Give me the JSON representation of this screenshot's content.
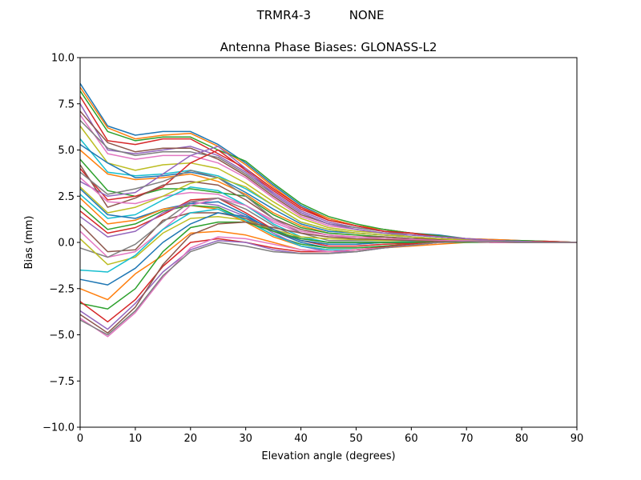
{
  "suptitle": "TRMR4-3          NONE",
  "chart_data": {
    "type": "line",
    "title": "Antenna Phase Biases: GLONASS-L2",
    "xlabel": "Elevation angle (degrees)",
    "ylabel": "Bias (mm)",
    "xlim": [
      0,
      90
    ],
    "ylim": [
      -10,
      10
    ],
    "xticks": [
      "0",
      "10",
      "20",
      "30",
      "40",
      "50",
      "60",
      "70",
      "80",
      "90"
    ],
    "yticks": [
      "10.0",
      "7.5",
      "5.0",
      "2.5",
      "0.0",
      "−2.5",
      "−5.0",
      "−7.5",
      "−10.0"
    ],
    "grid": false,
    "colors": [
      "#1f77b4",
      "#ff7f0e",
      "#2ca02c",
      "#d62728",
      "#9467bd",
      "#8c564b",
      "#e377c2",
      "#7f7f7f",
      "#bcbd22",
      "#17becf"
    ],
    "x": [
      0,
      5,
      10,
      15,
      20,
      25,
      30,
      35,
      40,
      45,
      50,
      55,
      60,
      65,
      70,
      75,
      80,
      85,
      90
    ],
    "series": [
      {
        "values": [
          8.6,
          6.3,
          5.8,
          6.0,
          6.0,
          5.3,
          4.3,
          3.1,
          2.0,
          1.3,
          0.9,
          0.7,
          0.5,
          0.4,
          0.2,
          0.15,
          0.1,
          0.05,
          0
        ]
      },
      {
        "values": [
          8.4,
          6.2,
          5.6,
          5.8,
          5.9,
          5.2,
          4.2,
          3.0,
          1.9,
          1.3,
          0.9,
          0.7,
          0.5,
          0.35,
          0.2,
          0.15,
          0.1,
          0.05,
          0
        ]
      },
      {
        "values": [
          8.2,
          6.0,
          5.5,
          5.7,
          5.7,
          5.0,
          4.4,
          3.2,
          2.1,
          1.4,
          1.0,
          0.7,
          0.5,
          0.35,
          0.2,
          0.1,
          0.1,
          0.05,
          0
        ]
      },
      {
        "values": [
          7.9,
          5.5,
          5.3,
          5.6,
          5.6,
          4.8,
          4.0,
          2.9,
          1.9,
          1.2,
          0.9,
          0.6,
          0.5,
          0.3,
          0.2,
          0.1,
          0.05,
          0.05,
          0
        ]
      },
      {
        "values": [
          7.5,
          5.0,
          4.8,
          5.0,
          5.2,
          4.7,
          3.8,
          2.7,
          1.7,
          1.1,
          0.8,
          0.6,
          0.4,
          0.3,
          0.2,
          0.1,
          0.05,
          0,
          0
        ]
      },
      {
        "values": [
          7.1,
          5.4,
          4.9,
          5.1,
          5.1,
          4.5,
          3.6,
          2.5,
          1.5,
          1.0,
          0.7,
          0.5,
          0.4,
          0.3,
          0.2,
          0.1,
          0.05,
          0,
          0
        ]
      },
      {
        "values": [
          6.9,
          4.8,
          4.5,
          4.7,
          4.7,
          4.3,
          3.5,
          2.4,
          1.4,
          0.9,
          0.7,
          0.5,
          0.4,
          0.3,
          0.2,
          0.1,
          0.05,
          0,
          0
        ]
      },
      {
        "values": [
          6.6,
          5.1,
          4.7,
          4.9,
          4.9,
          4.6,
          3.7,
          2.6,
          1.6,
          1.0,
          0.8,
          0.6,
          0.4,
          0.3,
          0.2,
          0.1,
          0.05,
          0,
          0
        ]
      },
      {
        "values": [
          6.3,
          4.3,
          3.9,
          4.2,
          4.3,
          4.0,
          3.2,
          2.2,
          1.3,
          0.8,
          0.6,
          0.5,
          0.3,
          0.2,
          0.15,
          0.1,
          0.05,
          0,
          0
        ]
      },
      {
        "values": [
          5.6,
          3.8,
          3.6,
          3.7,
          3.9,
          3.6,
          2.9,
          2.0,
          1.1,
          0.7,
          0.5,
          0.4,
          0.3,
          0.2,
          0.1,
          0.1,
          0.05,
          0,
          0
        ]
      },
      {
        "values": [
          5.3,
          4.3,
          3.5,
          3.6,
          3.8,
          3.5,
          2.7,
          1.8,
          1.0,
          0.6,
          0.5,
          0.4,
          0.3,
          0.2,
          0.1,
          0.05,
          0,
          0,
          0
        ]
      },
      {
        "values": [
          5.0,
          3.7,
          3.4,
          3.5,
          3.7,
          3.3,
          2.6,
          1.6,
          0.9,
          0.5,
          0.4,
          0.3,
          0.2,
          0.2,
          0.1,
          0.05,
          0,
          0,
          0
        ]
      },
      {
        "values": [
          4.5,
          2.8,
          2.5,
          2.9,
          2.9,
          2.7,
          2.5,
          1.5,
          0.8,
          0.5,
          0.4,
          0.3,
          0.2,
          0.15,
          0.1,
          0.05,
          0,
          0,
          0
        ]
      },
      {
        "values": [
          4.0,
          2.3,
          2.5,
          3.0,
          4.3,
          5.0,
          3.9,
          2.8,
          1.8,
          1.2,
          0.9,
          0.6,
          0.5,
          0.3,
          0.2,
          0.1,
          0.05,
          0,
          0
        ]
      },
      {
        "values": [
          3.3,
          2.5,
          2.7,
          3.7,
          4.7,
          5.2,
          4.0,
          2.6,
          1.6,
          1.0,
          0.7,
          0.5,
          0.4,
          0.3,
          0.2,
          0.1,
          0.05,
          0,
          0
        ]
      },
      {
        "values": [
          4.2,
          1.9,
          2.4,
          3.1,
          3.3,
          3.1,
          2.3,
          1.3,
          0.7,
          0.4,
          0.3,
          0.3,
          0.2,
          0.15,
          0.1,
          0.05,
          0,
          0,
          0
        ]
      },
      {
        "values": [
          3.5,
          2.2,
          2.1,
          2.5,
          2.7,
          2.6,
          2.0,
          1.1,
          0.5,
          0.3,
          0.3,
          0.2,
          0.15,
          0.1,
          0.1,
          0.05,
          0,
          0,
          0
        ]
      },
      {
        "values": [
          3.8,
          2.6,
          2.9,
          3.3,
          3.9,
          3.5,
          2.5,
          1.3,
          0.5,
          0.1,
          0.1,
          0.1,
          0.1,
          0.1,
          0.1,
          0.05,
          0,
          0,
          0
        ]
      },
      {
        "values": [
          3.0,
          1.6,
          1.9,
          2.5,
          3.2,
          3.5,
          3.0,
          2.0,
          1.1,
          0.7,
          0.5,
          0.4,
          0.3,
          0.2,
          0.1,
          0.05,
          0,
          0,
          0
        ]
      },
      {
        "values": [
          2.6,
          1.3,
          1.5,
          2.3,
          3.0,
          2.8,
          2.0,
          1.0,
          0.3,
          0.0,
          0.0,
          0.0,
          0.05,
          0.05,
          0.05,
          0.05,
          0,
          0,
          0
        ]
      },
      {
        "values": [
          2.9,
          1.5,
          1.3,
          1.8,
          2.1,
          2.2,
          1.5,
          0.6,
          0.0,
          -0.3,
          -0.3,
          -0.2,
          -0.1,
          0,
          0.05,
          0.05,
          0,
          0,
          0
        ]
      },
      {
        "values": [
          2.4,
          1.0,
          1.2,
          1.8,
          2.0,
          1.8,
          1.1,
          0.3,
          -0.2,
          -0.4,
          -0.4,
          -0.3,
          -0.2,
          -0.1,
          0,
          0.05,
          0,
          0,
          0
        ]
      },
      {
        "values": [
          2.0,
          0.7,
          1.0,
          1.7,
          2.0,
          1.9,
          1.2,
          0.4,
          -0.1,
          -0.3,
          -0.3,
          -0.2,
          -0.1,
          0,
          0,
          0,
          0,
          0,
          0
        ]
      },
      {
        "values": [
          1.7,
          0.5,
          0.8,
          1.5,
          2.3,
          2.4,
          1.6,
          0.7,
          0.1,
          -0.2,
          -0.2,
          -0.1,
          -0.05,
          0,
          0.05,
          0,
          0,
          0,
          0
        ]
      },
      {
        "values": [
          1.4,
          0.3,
          0.6,
          1.6,
          2.2,
          2.0,
          1.4,
          0.5,
          -0.2,
          -0.5,
          -0.5,
          -0.3,
          -0.15,
          0,
          0.05,
          0,
          0,
          0,
          0
        ]
      },
      {
        "values": [
          1.0,
          -0.5,
          -0.4,
          1.2,
          1.6,
          1.6,
          1.3,
          0.6,
          0.1,
          -0.1,
          -0.1,
          0,
          0,
          0.05,
          0.05,
          0,
          0,
          0,
          0
        ]
      },
      {
        "values": [
          0.6,
          -0.8,
          -0.5,
          0.7,
          2.0,
          2.4,
          2.0,
          1.2,
          0.6,
          0.4,
          0.3,
          0.2,
          0.15,
          0.1,
          0.1,
          0.05,
          0,
          0,
          0
        ]
      },
      {
        "values": [
          -0.3,
          -0.8,
          -0.1,
          1.1,
          2.2,
          2.4,
          1.8,
          0.9,
          0.2,
          0,
          0,
          0,
          0,
          0.05,
          0.05,
          0,
          0,
          0,
          0
        ]
      },
      {
        "values": [
          0.2,
          -1.2,
          -0.8,
          0.5,
          1.3,
          1.4,
          1.2,
          0.7,
          0.3,
          0.2,
          0.15,
          0.1,
          0.1,
          0.05,
          0.05,
          0,
          0,
          0,
          0
        ]
      },
      {
        "values": [
          -1.5,
          -1.6,
          -0.7,
          0.7,
          1.6,
          1.8,
          1.2,
          0.4,
          -0.2,
          -0.4,
          -0.4,
          -0.3,
          -0.15,
          0,
          0.05,
          0,
          0,
          0,
          0
        ]
      },
      {
        "values": [
          -2.0,
          -2.3,
          -1.4,
          0.0,
          1.0,
          1.6,
          1.4,
          0.7,
          0.1,
          -0.1,
          -0.1,
          0,
          0,
          0.05,
          0.05,
          0,
          0,
          0,
          0
        ]
      },
      {
        "values": [
          -2.5,
          -3.1,
          -1.7,
          -0.7,
          0.5,
          0.6,
          0.4,
          0.0,
          -0.4,
          -0.5,
          -0.4,
          -0.3,
          -0.15,
          0,
          0.05,
          0,
          0,
          0,
          0
        ]
      },
      {
        "values": [
          -3.3,
          -3.6,
          -2.5,
          -0.5,
          0.8,
          1.1,
          1.1,
          0.6,
          0.2,
          0.0,
          0,
          0,
          0,
          0.05,
          0.05,
          0,
          0,
          0,
          0
        ]
      },
      {
        "values": [
          -3.2,
          -4.3,
          -3.1,
          -1.3,
          0.0,
          0.2,
          0.0,
          -0.3,
          -0.5,
          -0.5,
          -0.4,
          -0.25,
          -0.1,
          0,
          0.05,
          0,
          0,
          0,
          0
        ]
      },
      {
        "values": [
          -3.7,
          -4.7,
          -3.3,
          -1.6,
          -0.4,
          0.1,
          0.0,
          -0.4,
          -0.6,
          -0.6,
          -0.5,
          -0.3,
          -0.15,
          0,
          0.05,
          0.05,
          0,
          0,
          0
        ]
      },
      {
        "values": [
          -3.9,
          -4.9,
          -3.5,
          -1.2,
          0.4,
          1.0,
          1.1,
          0.8,
          0.5,
          0.3,
          0.2,
          0.15,
          0.1,
          0.05,
          0.05,
          0,
          0,
          0,
          0
        ]
      },
      {
        "values": [
          -4.1,
          -5.1,
          -3.8,
          -1.9,
          -0.3,
          0.3,
          0.2,
          -0.1,
          -0.4,
          -0.5,
          -0.4,
          -0.3,
          -0.15,
          0,
          0.05,
          0,
          0,
          0,
          0
        ]
      },
      {
        "values": [
          -4.2,
          -5.0,
          -3.7,
          -1.8,
          -0.5,
          0.0,
          -0.2,
          -0.5,
          -0.6,
          -0.6,
          -0.5,
          -0.3,
          -0.15,
          0,
          0.05,
          0.05,
          0,
          0,
          0
        ]
      }
    ]
  }
}
